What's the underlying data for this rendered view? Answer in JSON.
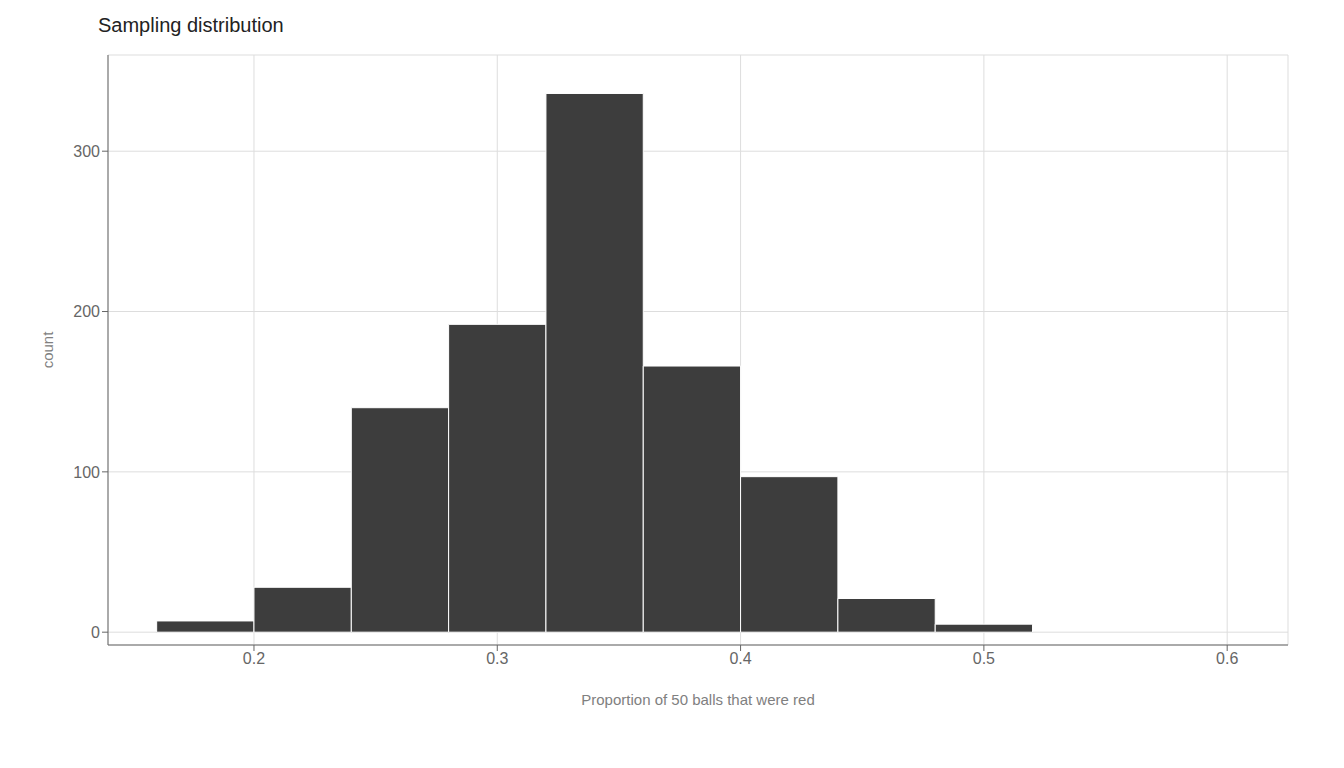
{
  "chart_data": {
    "type": "histogram",
    "title": "Sampling distribution",
    "xlabel": "Proportion of 50 balls that were red",
    "ylabel": "count",
    "bins": [
      0.16,
      0.2,
      0.24,
      0.28,
      0.32,
      0.36,
      0.4,
      0.44,
      0.48,
      0.52,
      0.56,
      0.6
    ],
    "values": [
      7,
      28,
      140,
      192,
      336,
      166,
      97,
      21,
      5,
      0,
      0
    ],
    "color": "#3D3D3D",
    "xlim": [
      0.14,
      0.625
    ],
    "ylim": [
      -8,
      360
    ],
    "xticks": [
      0.2,
      0.3,
      0.4,
      0.5,
      0.6
    ],
    "yticks": [
      0,
      100,
      200,
      300
    ],
    "grid": true
  }
}
